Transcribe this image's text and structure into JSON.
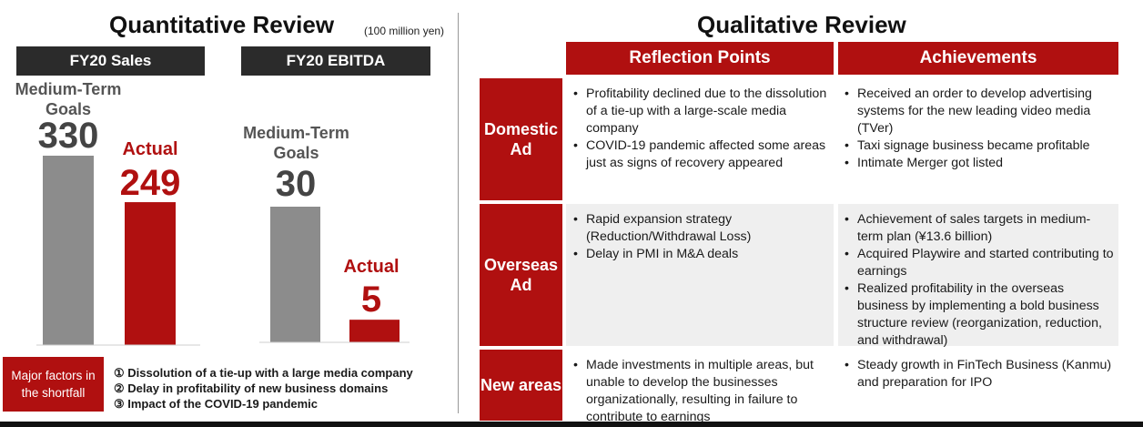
{
  "left": {
    "title": "Quantitative Review",
    "unit_note": "(100 million yen)",
    "panels": [
      {
        "header": "FY20 Sales",
        "goal_label_line1": "Medium-Term",
        "goal_label_line2": "Goals",
        "goal_value": "330",
        "actual_label": "Actual",
        "actual_value": "249"
      },
      {
        "header": "FY20 EBITDA",
        "goal_label_line1": "Medium-Term",
        "goal_label_line2": "Goals",
        "goal_value": "30",
        "actual_label": "Actual",
        "actual_value": "5"
      }
    ],
    "factors": {
      "label": "Major factors in the shortfall",
      "items": [
        "① Dissolution of a tie-up with a large media company",
        "② Delay in profitability of new business domains",
        "③ Impact of the COVID-19 pandemic"
      ]
    }
  },
  "chart_data": [
    {
      "type": "bar",
      "categories": [
        "Medium-Term Goals",
        "Actual"
      ],
      "values": [
        330,
        249
      ],
      "title": "FY20 Sales"
    },
    {
      "type": "bar",
      "categories": [
        "Medium-Term Goals",
        "Actual"
      ],
      "values": [
        30,
        5
      ],
      "title": "FY20 EBITDA"
    }
  ],
  "colors": {
    "goal_bar": "#8c8c8c",
    "actual_bar": "#b01010",
    "header_dark": "#2b2b2b",
    "accent_red": "#b01010"
  },
  "right": {
    "title": "Qualitative Review",
    "col_headers": [
      "Reflection Points",
      "Achievements"
    ],
    "rows": [
      {
        "label": "Domestic Ad",
        "reflection": [
          "Profitability declined due to the dissolution of a tie-up with a large-scale media company",
          "COVID-19 pandemic affected some areas just as signs of recovery appeared"
        ],
        "achievements": [
          "Received an order to develop advertising systems for the new leading video media (TVer)",
          "Taxi signage business became profitable",
          "Intimate Merger got listed"
        ]
      },
      {
        "label": "Overseas Ad",
        "reflection": [
          "Rapid expansion strategy (Reduction/Withdrawal Loss)",
          "Delay in PMI in M&A deals"
        ],
        "achievements": [
          "Achievement of sales targets in medium-term plan (¥13.6 billion)",
          "Acquired Playwire and started contributing to earnings",
          "Realized profitability in the overseas business by implementing a bold business structure review (reorganization, reduction, and withdrawal)"
        ]
      },
      {
        "label": "New areas",
        "reflection": [
          "Made investments in multiple areas, but unable to develop the businesses organizationally, resulting in failure to contribute to earnings"
        ],
        "achievements": [
          "Steady growth in FinTech Business (Kanmu) and preparation for IPO"
        ]
      }
    ]
  }
}
